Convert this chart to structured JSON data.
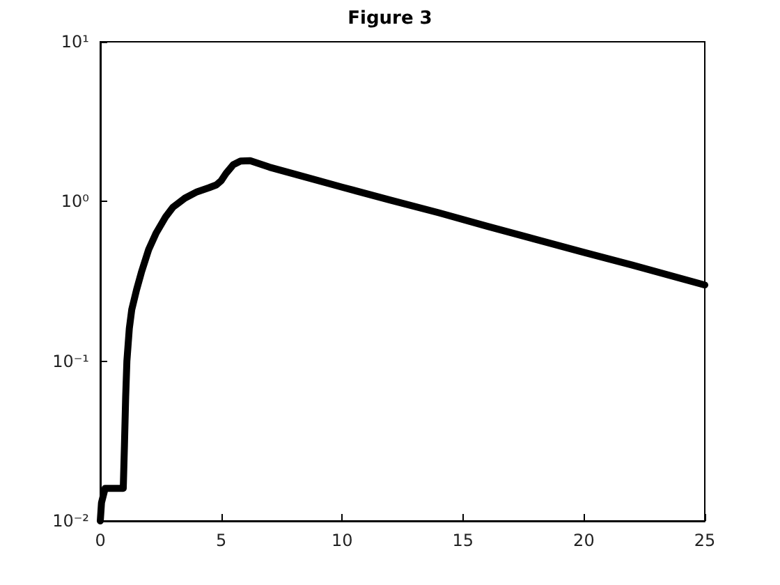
{
  "chart_data": {
    "type": "line",
    "title": "Figure 3",
    "log": "y",
    "grid": false,
    "marker": "none",
    "line_style": "solid",
    "xlim": [
      0,
      25
    ],
    "xticks": [
      0,
      5,
      10,
      15,
      20,
      25
    ],
    "ylim": [
      0.01,
      10
    ],
    "yticks": [
      {
        "value": 0.01,
        "label": "10⁻²"
      },
      {
        "value": 0.1,
        "label": "10⁻¹"
      },
      {
        "value": 1,
        "label": "10⁰"
      },
      {
        "value": 10,
        "label": "10¹"
      }
    ],
    "series": [
      {
        "color": "#000000",
        "x": [
          0,
          0.05,
          0.2,
          0.5,
          0.95,
          1.0,
          1.05,
          1.1,
          1.2,
          1.3,
          1.5,
          1.7,
          2.0,
          2.3,
          2.7,
          3.0,
          3.5,
          4.0,
          4.5,
          4.8,
          5.0,
          5.2,
          5.5,
          5.8,
          6.2,
          7,
          8,
          10,
          12,
          14,
          16,
          18,
          20,
          22,
          25
        ],
        "values": [
          0.01,
          0.013,
          0.016,
          0.016,
          0.016,
          0.03,
          0.06,
          0.1,
          0.16,
          0.21,
          0.28,
          0.36,
          0.5,
          0.63,
          0.8,
          0.92,
          1.05,
          1.15,
          1.22,
          1.27,
          1.35,
          1.5,
          1.7,
          1.79,
          1.8,
          1.64,
          1.49,
          1.23,
          1.02,
          0.85,
          0.7,
          0.58,
          0.48,
          0.4,
          0.3
        ]
      }
    ]
  }
}
